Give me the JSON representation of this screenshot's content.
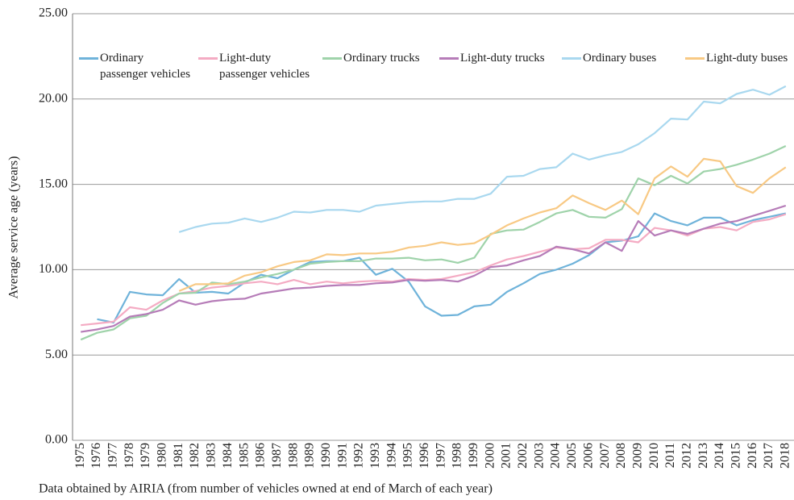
{
  "chart_data": {
    "type": "line",
    "y_label": "Average service age (years)",
    "note": "Data obtained by AIRIA (from number of vehicles owned at end of March of each year)",
    "categories": [
      "1975",
      "1976",
      "1977",
      "1978",
      "1979",
      "1980",
      "1981",
      "1982",
      "1983",
      "1984",
      "1985",
      "1986",
      "1987",
      "1988",
      "1989",
      "1990",
      "1991",
      "1992",
      "1993",
      "1994",
      "1995",
      "1996",
      "1997",
      "1998",
      "1999",
      "2000",
      "2001",
      "2002",
      "2003",
      "2004",
      "2005",
      "2006",
      "2007",
      "2008",
      "2009",
      "2010",
      "2011",
      "2012",
      "2013",
      "2014",
      "2015",
      "2016",
      "2017",
      "2018"
    ],
    "ylim": [
      0,
      25
    ],
    "yticks": [
      {
        "value": 0,
        "label": "0.00"
      },
      {
        "value": 5,
        "label": "5.00"
      },
      {
        "value": 10,
        "label": "10.00"
      },
      {
        "value": 15,
        "label": "15.00"
      },
      {
        "value": 20,
        "label": "20.00"
      },
      {
        "value": 25,
        "label": "25.00"
      }
    ],
    "grid": true,
    "series": [
      {
        "name": "Ordinary passenger vehicles",
        "color": "#6fb3da",
        "values": [
          null,
          7.1,
          6.9,
          8.7,
          8.55,
          8.5,
          9.45,
          8.65,
          8.7,
          8.6,
          9.25,
          9.7,
          9.5,
          10.0,
          10.45,
          10.5,
          10.5,
          10.7,
          9.7,
          10.05,
          9.3,
          7.85,
          7.3,
          7.35,
          7.85,
          7.95,
          8.7,
          9.2,
          9.75,
          10.0,
          10.35,
          10.85,
          11.6,
          11.7,
          11.95,
          13.3,
          12.85,
          12.6,
          13.05,
          13.05,
          12.6,
          12.9,
          13.1,
          13.3
        ]
      },
      {
        "name": "Light-duty passenger vehicles",
        "color": "#f4abc3",
        "values": [
          6.75,
          6.85,
          6.95,
          7.8,
          7.65,
          8.2,
          8.6,
          8.75,
          8.95,
          9.05,
          9.2,
          9.3,
          9.15,
          9.4,
          9.15,
          9.3,
          9.2,
          9.3,
          9.35,
          9.3,
          9.45,
          9.4,
          9.45,
          9.65,
          9.85,
          10.25,
          10.6,
          10.8,
          11.05,
          11.3,
          11.2,
          11.25,
          11.75,
          11.75,
          11.6,
          12.45,
          12.3,
          12.0,
          12.4,
          12.5,
          12.3,
          12.8,
          12.95,
          13.25
        ]
      },
      {
        "name": "Ordinary trucks",
        "color": "#9fd3aa",
        "values": [
          5.9,
          6.3,
          6.5,
          7.15,
          7.3,
          8.05,
          8.6,
          8.65,
          9.25,
          9.15,
          9.3,
          9.55,
          9.75,
          10.0,
          10.35,
          10.45,
          10.5,
          10.5,
          10.65,
          10.65,
          10.7,
          10.55,
          10.6,
          10.4,
          10.7,
          12.1,
          12.3,
          12.35,
          12.8,
          13.3,
          13.5,
          13.1,
          13.05,
          13.55,
          15.35,
          14.95,
          15.5,
          15.05,
          15.75,
          15.9,
          16.15,
          16.45,
          16.8,
          17.25
        ]
      },
      {
        "name": "Light-duty trucks",
        "color": "#b67cb8",
        "values": [
          6.35,
          6.5,
          6.7,
          7.25,
          7.4,
          7.65,
          8.2,
          7.95,
          8.15,
          8.25,
          8.3,
          8.6,
          8.75,
          8.9,
          8.95,
          9.05,
          9.1,
          9.1,
          9.2,
          9.25,
          9.4,
          9.35,
          9.4,
          9.3,
          9.65,
          10.15,
          10.25,
          10.55,
          10.8,
          11.35,
          11.2,
          10.95,
          11.6,
          11.1,
          12.85,
          12.0,
          12.3,
          12.1,
          12.4,
          12.7,
          12.85,
          13.15,
          13.45,
          13.75
        ]
      },
      {
        "name": "Ordinary buses",
        "color": "#a9d8ef",
        "values": [
          null,
          null,
          null,
          null,
          null,
          null,
          12.2,
          12.5,
          12.7,
          12.75,
          13.0,
          12.8,
          13.05,
          13.4,
          13.35,
          13.5,
          13.5,
          13.4,
          13.75,
          13.85,
          13.95,
          14.0,
          14.0,
          14.15,
          14.15,
          14.45,
          15.45,
          15.5,
          15.9,
          16.0,
          16.8,
          16.45,
          16.7,
          16.9,
          17.35,
          18.0,
          18.85,
          18.8,
          19.85,
          19.75,
          20.3,
          20.55,
          20.25,
          20.75
        ]
      },
      {
        "name": "Light-duty buses",
        "color": "#f8c984",
        "values": [
          null,
          null,
          null,
          null,
          null,
          null,
          8.75,
          9.15,
          9.15,
          9.2,
          9.65,
          9.85,
          10.2,
          10.45,
          10.55,
          10.9,
          10.85,
          10.95,
          10.95,
          11.05,
          11.3,
          11.4,
          11.6,
          11.45,
          11.55,
          12.05,
          12.6,
          13.0,
          13.35,
          13.6,
          14.35,
          13.9,
          13.5,
          14.05,
          13.25,
          15.35,
          16.05,
          15.45,
          16.5,
          16.35,
          14.9,
          14.5,
          15.35,
          16.0
        ]
      }
    ]
  }
}
